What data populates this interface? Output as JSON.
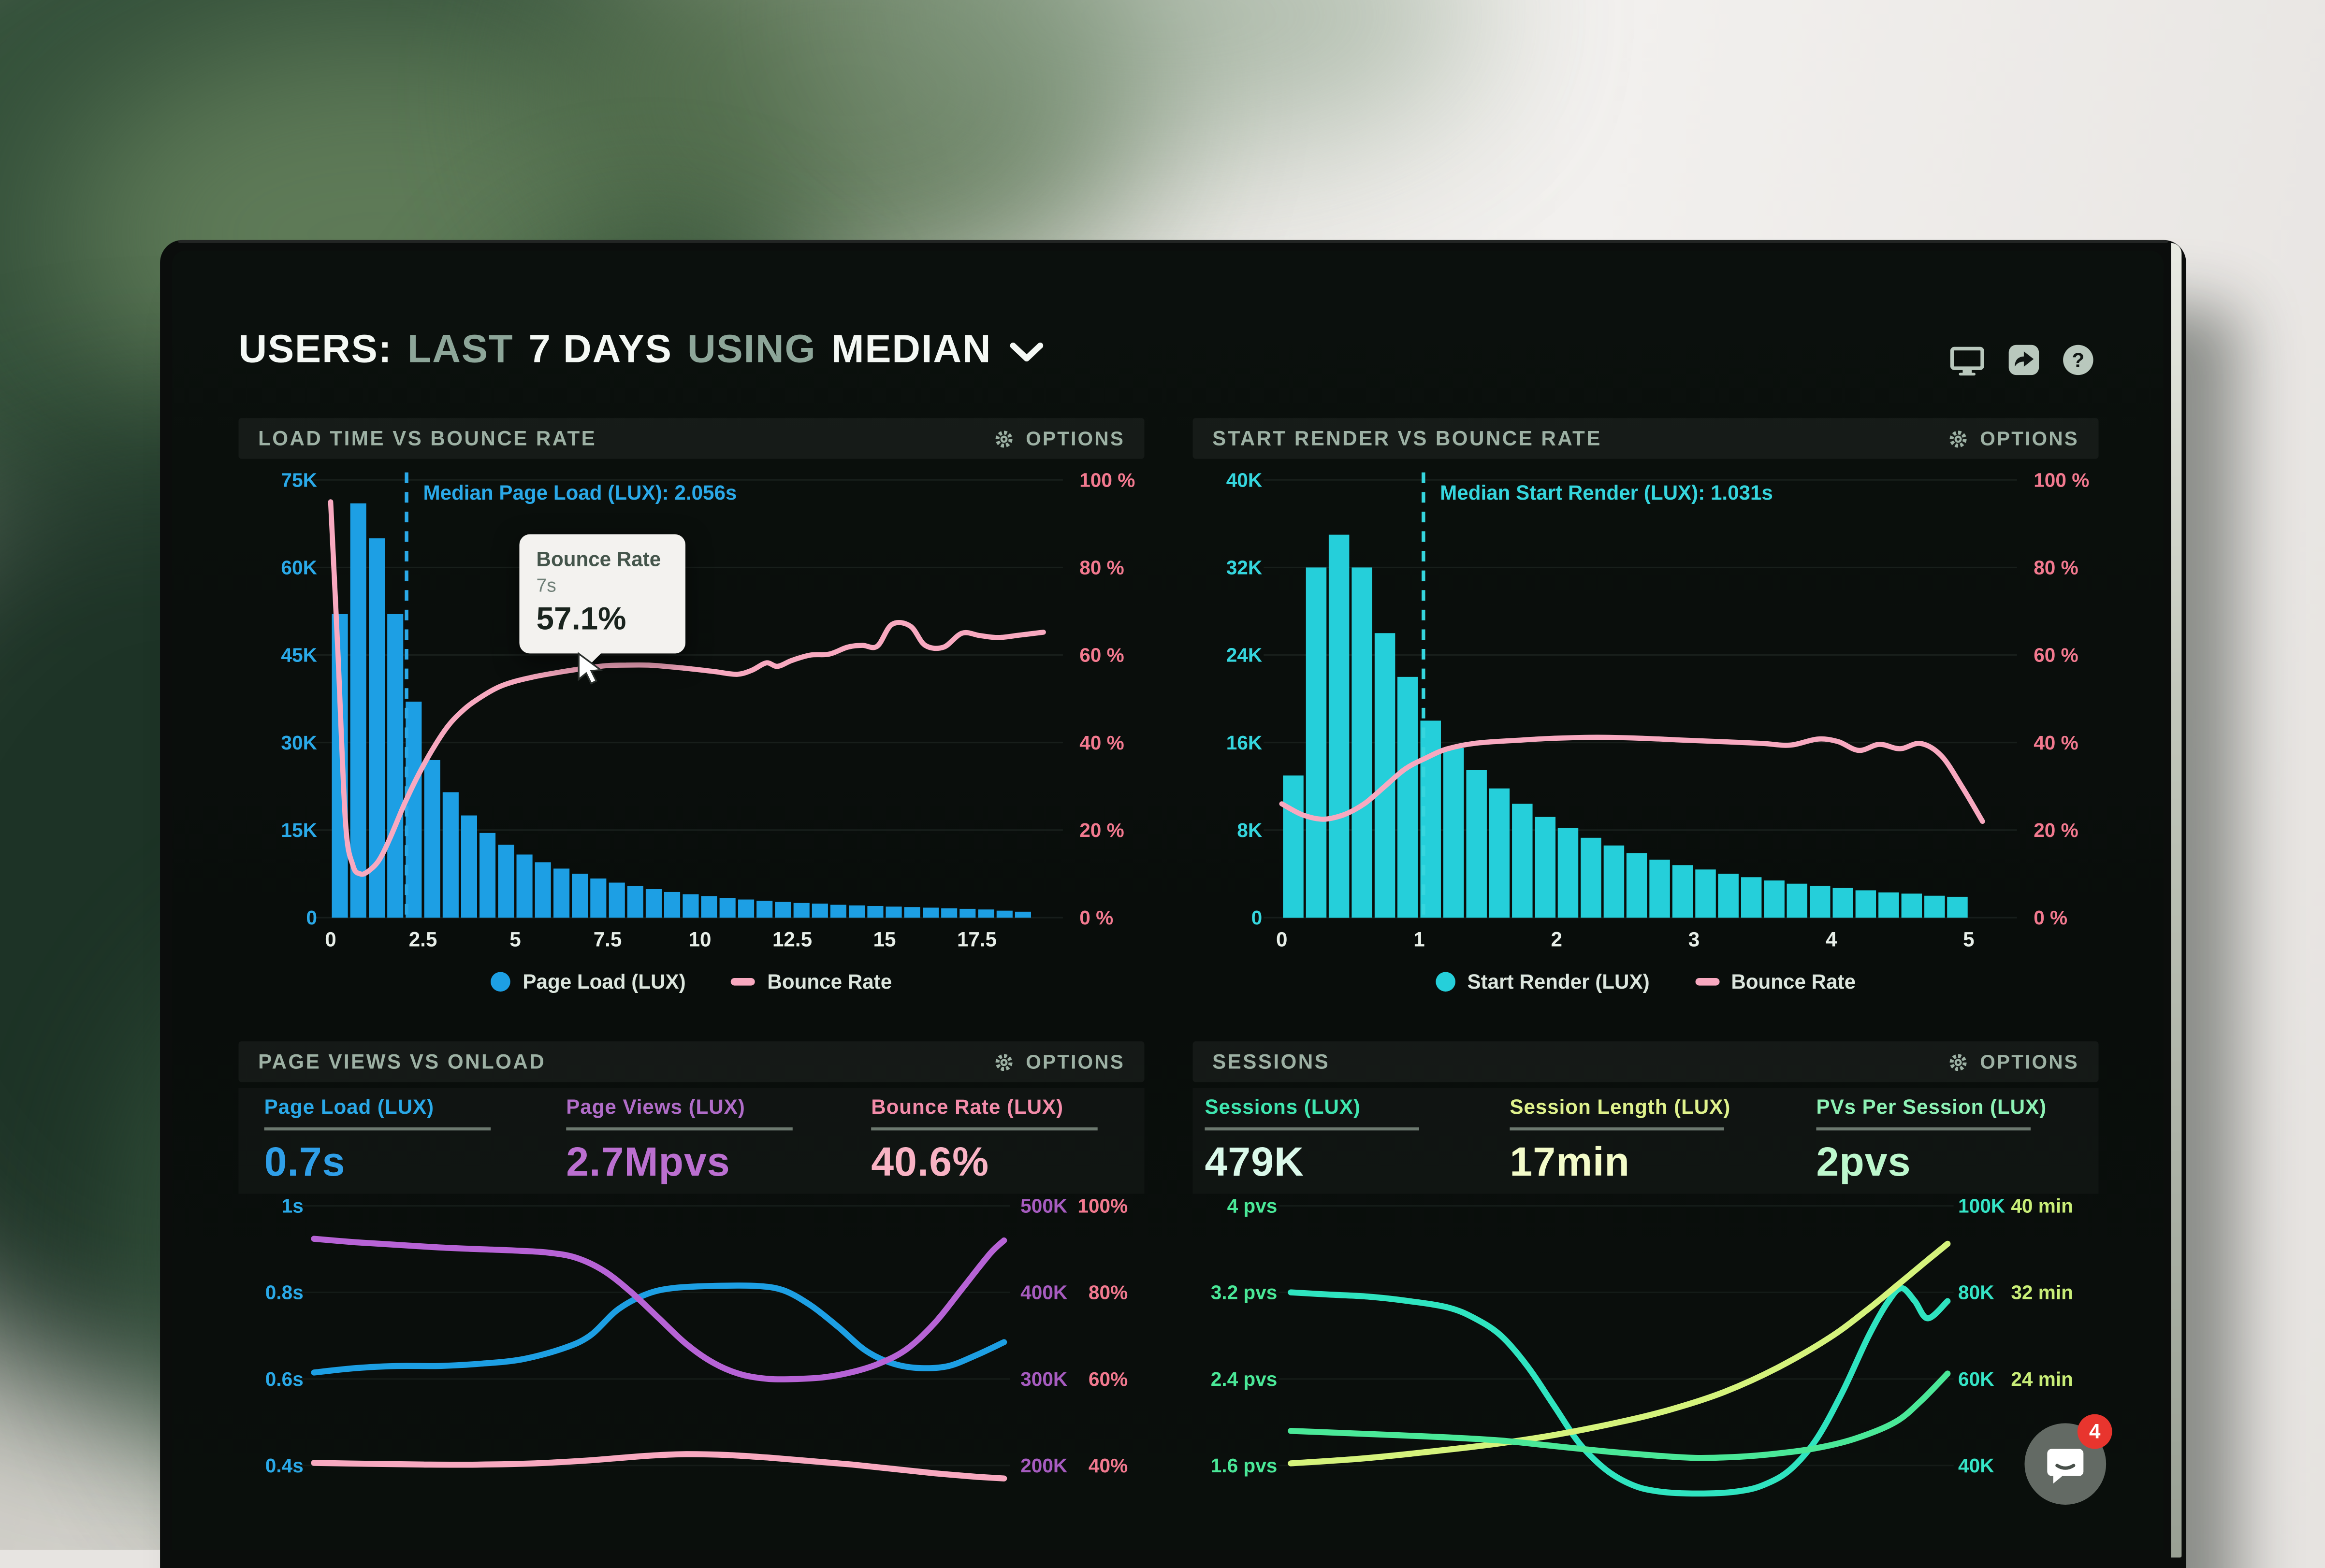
{
  "header": {
    "t1": "USERS:",
    "t2": "LAST",
    "t3": "7 DAYS",
    "t4": "USING",
    "t5": "MEDIAN",
    "icons": [
      "display",
      "share",
      "help"
    ]
  },
  "chat": {
    "badge_count": "4"
  },
  "chart_data": [
    {
      "id": "load-time-vs-bounce-rate",
      "type": "bar+line",
      "title": "LOAD TIME VS BOUNCE RATE",
      "options_label": "OPTIONS",
      "x_axis": {
        "ticks": [
          0,
          2.5,
          5,
          7.5,
          10,
          12.5,
          15,
          17.5
        ],
        "labels": [
          "0",
          "2.5",
          "5",
          "7.5",
          "10",
          "12.5",
          "15",
          "17.5"
        ],
        "unit": "seconds"
      },
      "y_left": {
        "labels": [
          "75K",
          "60K",
          "45K",
          "30K",
          "15K",
          "0"
        ],
        "max": 75000,
        "color": "#2aa9e8"
      },
      "y_right": {
        "labels": [
          "100 %",
          "80 %",
          "60 %",
          "40 %",
          "20 %",
          "0 %"
        ],
        "max": 100,
        "color": "#f2798f"
      },
      "bars": {
        "name": "Page Load (LUX)",
        "color": "#1d9fe4",
        "bin_width_s": 0.5,
        "values_k": [
          52,
          71,
          65,
          52,
          37,
          27,
          21.5,
          17.5,
          14.5,
          12.5,
          10.8,
          9.5,
          8.4,
          7.5,
          6.7,
          6,
          5.4,
          4.9,
          4.4,
          4,
          3.7,
          3.4,
          3.1,
          2.9,
          2.7,
          2.5,
          2.4,
          2.2,
          2.1,
          2,
          1.9,
          1.8,
          1.7,
          1.6,
          1.5,
          1.4,
          1.2,
          1
        ]
      },
      "line": {
        "name": "Bounce Rate",
        "color": "#f8a9c0",
        "points": [
          [
            0,
            95
          ],
          [
            0.2,
            60
          ],
          [
            0.4,
            22
          ],
          [
            0.6,
            12
          ],
          [
            0.8,
            10
          ],
          [
            1,
            10.5
          ],
          [
            1.3,
            13
          ],
          [
            1.6,
            18
          ],
          [
            2,
            26
          ],
          [
            2.4,
            33
          ],
          [
            2.8,
            39
          ],
          [
            3.2,
            44
          ],
          [
            3.6,
            47.5
          ],
          [
            4,
            50
          ],
          [
            4.5,
            52.5
          ],
          [
            5,
            54
          ],
          [
            5.5,
            55
          ],
          [
            6,
            55.8
          ],
          [
            6.5,
            56.5
          ],
          [
            7,
            57.1
          ],
          [
            7.5,
            57.6
          ],
          [
            8,
            57.7
          ],
          [
            8.6,
            57.7
          ],
          [
            9.2,
            57.3
          ],
          [
            9.8,
            56.8
          ],
          [
            10.4,
            56.2
          ],
          [
            11,
            55.6
          ],
          [
            11.4,
            56.5
          ],
          [
            11.8,
            58.2
          ],
          [
            12.1,
            57.4
          ],
          [
            12.5,
            58.8
          ],
          [
            13,
            60
          ],
          [
            13.5,
            60.2
          ],
          [
            14,
            61.8
          ],
          [
            14.4,
            62.2
          ],
          [
            14.8,
            62
          ],
          [
            15.2,
            67
          ],
          [
            15.7,
            66.6
          ],
          [
            16.1,
            62.2
          ],
          [
            16.6,
            61.8
          ],
          [
            17.1,
            65
          ],
          [
            17.6,
            64.4
          ],
          [
            18.1,
            64
          ],
          [
            18.7,
            64.6
          ],
          [
            19.3,
            65.2
          ]
        ]
      },
      "median": {
        "label": "Median Page Load (LUX): 2.056s",
        "x": 2.056,
        "color": "#2aa9e8"
      },
      "tooltip": {
        "title": "Bounce Rate",
        "sub": "7s",
        "value": "57.1%",
        "x": 7,
        "y_pct": 57.1
      },
      "legend": [
        {
          "label": "Page Load (LUX)",
          "color": "#1d9fe4",
          "marker": "dot"
        },
        {
          "label": "Bounce Rate",
          "color": "#f8a9c0",
          "marker": "line"
        }
      ]
    },
    {
      "id": "start-render-vs-bounce-rate",
      "type": "bar+line",
      "title": "START RENDER VS BOUNCE RATE",
      "options_label": "OPTIONS",
      "x_axis": {
        "ticks": [
          0,
          1,
          2,
          3,
          4,
          5
        ],
        "labels": [
          "0",
          "1",
          "2",
          "3",
          "4",
          "5"
        ],
        "unit": "seconds"
      },
      "y_left": {
        "labels": [
          "40K",
          "32K",
          "24K",
          "16K",
          "8K",
          "0"
        ],
        "max": 40000,
        "color": "#35d6de"
      },
      "y_right": {
        "labels": [
          "100 %",
          "80 %",
          "60 %",
          "40 %",
          "20 %",
          "0 %"
        ],
        "max": 100,
        "color": "#f2798f"
      },
      "bars": {
        "name": "Start Render (LUX)",
        "color": "#25cfda",
        "bin_width_s": 0.1667,
        "values_k": [
          13,
          32,
          35,
          32,
          26,
          22,
          18,
          15.5,
          13.5,
          11.8,
          10.4,
          9.2,
          8.2,
          7.3,
          6.6,
          5.9,
          5.3,
          4.8,
          4.4,
          4,
          3.7,
          3.4,
          3.1,
          2.9,
          2.7,
          2.5,
          2.3,
          2.2,
          2,
          1.9
        ]
      },
      "line": {
        "name": "Bounce Rate",
        "color": "#f8a9c0",
        "points": [
          [
            0,
            26
          ],
          [
            0.15,
            23.5
          ],
          [
            0.3,
            22.5
          ],
          [
            0.45,
            23.5
          ],
          [
            0.6,
            26
          ],
          [
            0.75,
            30
          ],
          [
            0.9,
            34
          ],
          [
            1.05,
            36.5
          ],
          [
            1.2,
            38.5
          ],
          [
            1.4,
            39.8
          ],
          [
            1.7,
            40.5
          ],
          [
            2,
            41
          ],
          [
            2.3,
            41.2
          ],
          [
            2.6,
            41
          ],
          [
            2.9,
            40.6
          ],
          [
            3.2,
            40.2
          ],
          [
            3.5,
            39.8
          ],
          [
            3.7,
            39.4
          ],
          [
            3.9,
            40.8
          ],
          [
            4.05,
            40.2
          ],
          [
            4.2,
            38.2
          ],
          [
            4.35,
            39.6
          ],
          [
            4.5,
            38.6
          ],
          [
            4.65,
            39.8
          ],
          [
            4.8,
            37
          ],
          [
            4.95,
            30
          ],
          [
            5.1,
            22
          ]
        ]
      },
      "median": {
        "label": "Median Start Render (LUX): 1.031s",
        "x": 1.031,
        "color": "#35d6de"
      },
      "legend": [
        {
          "label": "Start Render (LUX)",
          "color": "#25cfda",
          "marker": "dot"
        },
        {
          "label": "Bounce Rate",
          "color": "#f8a9c0",
          "marker": "line"
        }
      ]
    },
    {
      "id": "page-views-vs-onload",
      "type": "multi-line",
      "title": "PAGE VIEWS VS ONLOAD",
      "options_label": "OPTIONS",
      "metrics": [
        {
          "label": "Page Load (LUX)",
          "value": "0.7s",
          "label_color": "#2aa9e8",
          "value_color": "#2f9fe8"
        },
        {
          "label": "Page Views (LUX)",
          "value": "2.7Mpvs",
          "label_color": "#b06cc8",
          "value_color": "#bb6fd0"
        },
        {
          "label": "Bounce Rate (LUX)",
          "value": "40.6%",
          "label_color": "#f48caa",
          "value_color": "#f9b3c4"
        }
      ],
      "axes": {
        "left": {
          "labels": [
            "1s",
            "0.8s",
            "0.6s",
            "0.4s"
          ],
          "max": 1,
          "min": 0.4,
          "color": "#2aa9e8"
        },
        "right_1": {
          "labels": [
            "500K",
            "400K",
            "300K",
            "200K"
          ],
          "max": 500,
          "min": 200,
          "color": "#a75cc0"
        },
        "right_2": {
          "labels": [
            "100%",
            "80%",
            "60%",
            "40%"
          ],
          "max": 100,
          "min": 40,
          "color": "#f2798f"
        }
      },
      "series": [
        {
          "name": "Page Load (LUX)",
          "axis": "left",
          "color": "#1d9fe4",
          "points": [
            [
              0,
              0.615
            ],
            [
              6,
              0.625
            ],
            [
              12,
              0.63
            ],
            [
              18,
              0.63
            ],
            [
              24,
              0.635
            ],
            [
              30,
              0.645
            ],
            [
              36,
              0.67
            ],
            [
              40,
              0.7
            ],
            [
              44,
              0.76
            ],
            [
              48,
              0.795
            ],
            [
              52,
              0.81
            ],
            [
              58,
              0.815
            ],
            [
              64,
              0.815
            ],
            [
              68,
              0.805
            ],
            [
              72,
              0.77
            ],
            [
              76,
              0.72
            ],
            [
              80,
              0.665
            ],
            [
              84,
              0.635
            ],
            [
              88,
              0.625
            ],
            [
              92,
              0.63
            ],
            [
              96,
              0.655
            ],
            [
              100,
              0.685
            ]
          ]
        },
        {
          "name": "Page Views (LUX)",
          "axis": "right_1",
          "color": "#b763d6",
          "points": [
            [
              0,
              462
            ],
            [
              6,
              458
            ],
            [
              12,
              455
            ],
            [
              18,
              452
            ],
            [
              24,
              450
            ],
            [
              30,
              448
            ],
            [
              34,
              446
            ],
            [
              38,
              440
            ],
            [
              42,
              425
            ],
            [
              46,
              400
            ],
            [
              50,
              370
            ],
            [
              54,
              340
            ],
            [
              58,
              318
            ],
            [
              62,
              305
            ],
            [
              66,
              300
            ],
            [
              70,
              300
            ],
            [
              74,
              302
            ],
            [
              78,
              308
            ],
            [
              82,
              318
            ],
            [
              86,
              335
            ],
            [
              90,
              365
            ],
            [
              94,
              405
            ],
            [
              98,
              445
            ],
            [
              100,
              460
            ]
          ]
        },
        {
          "name": "Bounce Rate (LUX)",
          "axis": "right_2",
          "color": "#f8a9c0",
          "points": [
            [
              0,
              40.6
            ],
            [
              8,
              40.4
            ],
            [
              16,
              40.2
            ],
            [
              24,
              40.2
            ],
            [
              32,
              40.5
            ],
            [
              40,
              41.2
            ],
            [
              48,
              42.2
            ],
            [
              54,
              42.6
            ],
            [
              60,
              42.4
            ],
            [
              66,
              41.8
            ],
            [
              72,
              41
            ],
            [
              78,
              40.2
            ],
            [
              84,
              39.2
            ],
            [
              90,
              38.2
            ],
            [
              96,
              37.4
            ],
            [
              100,
              37
            ]
          ]
        }
      ]
    },
    {
      "id": "sessions",
      "type": "multi-line",
      "title": "SESSIONS",
      "options_label": "OPTIONS",
      "metrics": [
        {
          "label": "Sessions (LUX)",
          "value": "479K",
          "label_color": "#3fe6b0",
          "value_color": "#daf9ea"
        },
        {
          "label": "Session Length (LUX)",
          "value": "17min",
          "label_color": "#dff28c",
          "value_color": "#f3fbc9"
        },
        {
          "label": "PVs Per Session (LUX)",
          "value": "2pvs",
          "label_color": "#8df2b5",
          "value_color": "#bdf7cd"
        }
      ],
      "axes": {
        "left": {
          "labels": [
            "4 pvs",
            "3.2 pvs",
            "2.4 pvs",
            "1.6 pvs"
          ],
          "max": 4,
          "min": 1.6,
          "color": "#4ae898"
        },
        "right_1": {
          "labels": [
            "100K",
            "80K",
            "60K",
            "40K"
          ],
          "max": 100,
          "min": 40,
          "color": "#35e4c6"
        },
        "right_2": {
          "labels": [
            "40 min",
            "32 min",
            "24 min"
          ],
          "max": 40,
          "min": 16,
          "color": "#c9ee78"
        }
      },
      "series": [
        {
          "name": "Sessions (LUX)",
          "axis": "right_1",
          "color": "#2fe4c0",
          "points": [
            [
              0,
              80
            ],
            [
              6,
              79.5
            ],
            [
              12,
              79
            ],
            [
              18,
              78
            ],
            [
              24,
              76.5
            ],
            [
              28,
              74
            ],
            [
              32,
              70
            ],
            [
              36,
              63
            ],
            [
              40,
              54
            ],
            [
              44,
              45
            ],
            [
              48,
              39
            ],
            [
              52,
              35.5
            ],
            [
              56,
              34
            ],
            [
              62,
              33.5
            ],
            [
              68,
              34
            ],
            [
              72,
              35.5
            ],
            [
              76,
              39
            ],
            [
              80,
              46
            ],
            [
              84,
              57
            ],
            [
              88,
              70
            ],
            [
              91,
              78
            ],
            [
              93,
              81
            ],
            [
              95,
              78
            ],
            [
              97,
              74
            ],
            [
              100,
              78
            ]
          ]
        },
        {
          "name": "Session Length (LUX)",
          "axis": "right_2",
          "color": "#d5f37c",
          "points": [
            [
              0,
              16.2
            ],
            [
              10,
              16.6
            ],
            [
              20,
              17.2
            ],
            [
              30,
              17.9
            ],
            [
              40,
              18.8
            ],
            [
              50,
              20
            ],
            [
              58,
              21.2
            ],
            [
              66,
              22.8
            ],
            [
              74,
              25
            ],
            [
              82,
              27.8
            ],
            [
              88,
              30.5
            ],
            [
              93,
              33
            ],
            [
              97,
              35
            ],
            [
              100,
              36.5
            ]
          ]
        },
        {
          "name": "PVs Per Session (LUX)",
          "axis": "left",
          "color": "#4ae898",
          "points": [
            [
              0,
              1.92
            ],
            [
              8,
              1.9
            ],
            [
              16,
              1.88
            ],
            [
              24,
              1.86
            ],
            [
              32,
              1.83
            ],
            [
              40,
              1.78
            ],
            [
              48,
              1.73
            ],
            [
              56,
              1.69
            ],
            [
              62,
              1.67
            ],
            [
              68,
              1.68
            ],
            [
              74,
              1.71
            ],
            [
              80,
              1.76
            ],
            [
              86,
              1.85
            ],
            [
              92,
              2
            ],
            [
              96,
              2.2
            ],
            [
              100,
              2.45
            ]
          ]
        }
      ]
    }
  ]
}
